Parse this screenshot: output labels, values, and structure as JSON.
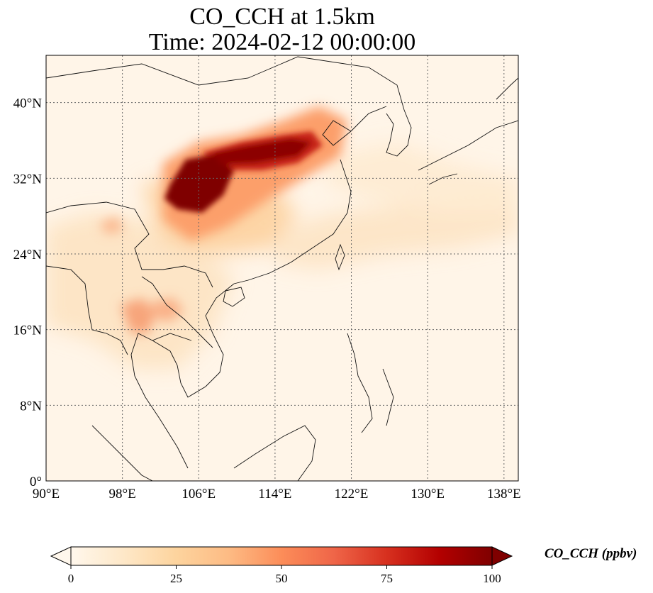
{
  "title": {
    "line1": "CO_CCH at 1.5km",
    "line2": "Time: 2024-02-12 00:00:00"
  },
  "map": {
    "lon_range": [
      90,
      139.5
    ],
    "lat_range": [
      0,
      45
    ],
    "lon_ticks": [
      "90°E",
      "98°E",
      "106°E",
      "114°E",
      "122°E",
      "130°E",
      "138°E"
    ],
    "lat_ticks": [
      "0°",
      "8°N",
      "16°N",
      "24°N",
      "32°N",
      "40°N"
    ],
    "gridlines": true,
    "colormap": "OrRd"
  },
  "colorbar": {
    "label": "CO_CCH (ppbv)",
    "ticks": [
      "0",
      "25",
      "50",
      "75",
      "100"
    ],
    "range": [
      0,
      100
    ],
    "extend": "both",
    "colors": [
      "#fff7ec",
      "#fee8c8",
      "#fdd49e",
      "#fdbb84",
      "#fc8d59",
      "#ef6548",
      "#d7301f",
      "#b30000",
      "#7f0000"
    ]
  }
}
